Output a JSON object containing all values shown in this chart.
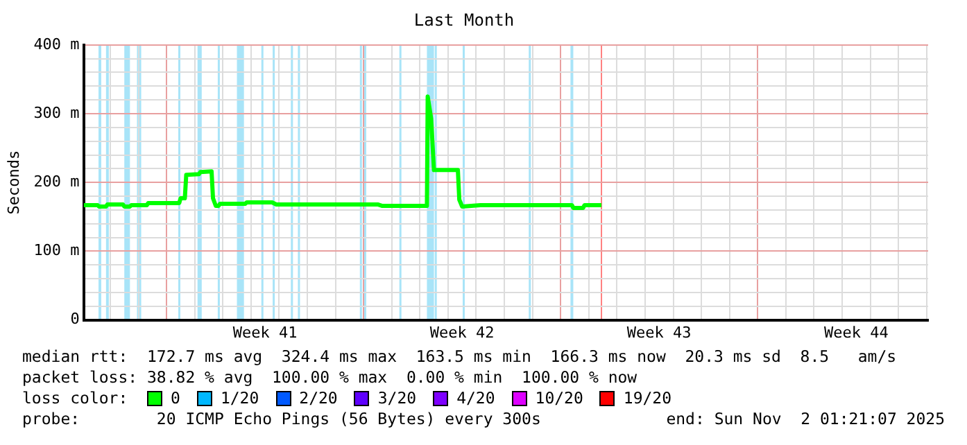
{
  "chart_data": {
    "type": "line",
    "title": "Last Month",
    "ylabel": "Seconds",
    "xlim": [
      "2025-10-03T01:21",
      "2025-11-02T01:21"
    ],
    "xticks": [
      {
        "value": "2025-10-04",
        "label": null
      },
      {
        "value": "2025-10-05",
        "label": null
      },
      {
        "value": "2025-10-06",
        "label": null
      },
      {
        "value": "2025-10-07",
        "label": null
      },
      {
        "value": "2025-10-08",
        "label": null
      },
      {
        "value": "2025-10-09",
        "label": null
      },
      {
        "value": "2025-10-09T12:00",
        "label": "Week 41"
      },
      {
        "value": "2025-10-10",
        "label": null
      },
      {
        "value": "2025-10-11",
        "label": null
      },
      {
        "value": "2025-10-12",
        "label": null
      },
      {
        "value": "2025-10-13",
        "label": null
      },
      {
        "value": "2025-10-14",
        "label": null
      },
      {
        "value": "2025-10-15",
        "label": null
      },
      {
        "value": "2025-10-16",
        "label": null
      },
      {
        "value": "2025-10-16T12:00",
        "label": "Week 42"
      },
      {
        "value": "2025-10-17",
        "label": null
      },
      {
        "value": "2025-10-18",
        "label": null
      },
      {
        "value": "2025-10-19",
        "label": null
      },
      {
        "value": "2025-10-20",
        "label": null
      },
      {
        "value": "2025-10-21",
        "label": null
      },
      {
        "value": "2025-10-22",
        "label": null
      },
      {
        "value": "2025-10-23",
        "label": null
      },
      {
        "value": "2025-10-23T12:00",
        "label": "Week 43"
      },
      {
        "value": "2025-10-24",
        "label": null
      },
      {
        "value": "2025-10-25",
        "label": null
      },
      {
        "value": "2025-10-26",
        "label": null
      },
      {
        "value": "2025-10-27",
        "label": null
      },
      {
        "value": "2025-10-28",
        "label": null
      },
      {
        "value": "2025-10-29",
        "label": null
      },
      {
        "value": "2025-10-30",
        "label": null
      },
      {
        "value": "2025-10-30T12:00",
        "label": "Week 44"
      },
      {
        "value": "2025-10-31",
        "label": null
      },
      {
        "value": "2025-11-01",
        "label": null
      },
      {
        "value": "2025-11-02",
        "label": null
      }
    ],
    "ylim": [
      0,
      400
    ],
    "yticks": [
      {
        "value": 0,
        "label": "0"
      },
      {
        "value": 20,
        "label": null
      },
      {
        "value": 40,
        "label": null
      },
      {
        "value": 60,
        "label": null
      },
      {
        "value": 80,
        "label": null
      },
      {
        "value": 100,
        "label": "100 m"
      },
      {
        "value": 120,
        "label": null
      },
      {
        "value": 140,
        "label": null
      },
      {
        "value": 160,
        "label": null
      },
      {
        "value": 180,
        "label": null
      },
      {
        "value": 200,
        "label": "200 m"
      },
      {
        "value": 220,
        "label": null
      },
      {
        "value": 240,
        "label": null
      },
      {
        "value": 260,
        "label": null
      },
      {
        "value": 280,
        "label": null
      },
      {
        "value": 300,
        "label": "300 m"
      },
      {
        "value": 320,
        "label": null
      },
      {
        "value": 340,
        "label": null
      },
      {
        "value": 360,
        "label": null
      },
      {
        "value": 380,
        "label": null
      },
      {
        "value": 400,
        "label": "400 m"
      }
    ],
    "grid": true,
    "legend": "bottom",
    "legend_title": "loss color:",
    "marker": "none",
    "line_style": "solid",
    "series": [
      {
        "name": "0",
        "color": "#00ff00",
        "x": [
          "2025-10-03T01:21",
          "2025-10-03T13:12",
          "2025-10-03T14:24",
          "2025-10-03T20:24",
          "2025-10-03T21:36",
          "2025-10-04T10:48",
          "2025-10-04T12:00",
          "2025-10-04T16:48",
          "2025-10-04T18:00",
          "2025-10-05T07:12",
          "2025-10-05T08:24",
          "2025-10-06T10:48",
          "2025-10-06T12:00",
          "2025-10-06T15:36",
          "2025-10-06T16:48",
          "2025-10-07T03:36",
          "2025-10-07T04:48",
          "2025-10-07T14:24",
          "2025-10-07T15:36",
          "2025-10-07T18:00",
          "2025-10-07T20:24",
          "2025-10-07T21:36",
          "2025-10-08T19:12",
          "2025-10-08T20:24",
          "2025-10-09T18:00",
          "2025-10-09T21:36",
          "2025-10-13T12:00",
          "2025-10-13T15:36",
          "2025-10-15T06:00",
          "2025-10-15T06:40",
          "2025-10-15T09:36",
          "2025-10-15T12:00",
          "2025-10-16T08:24",
          "2025-10-16T09:36",
          "2025-10-16T12:00",
          "2025-10-17T03:36",
          "2025-10-20T09:36",
          "2025-10-20T10:48",
          "2025-10-20T19:12",
          "2025-10-20T20:24",
          "2025-10-21T10:48"
        ],
        "values": [
          167,
          167,
          165,
          165,
          168,
          168,
          165,
          165,
          167,
          167,
          170,
          170,
          177,
          177,
          211,
          212,
          215,
          216,
          177,
          166,
          166,
          169,
          169,
          171,
          171,
          168,
          168,
          166,
          166,
          325,
          293,
          218,
          218,
          175,
          165,
          167,
          167,
          163,
          163,
          167,
          167
        ]
      },
      {
        "name": "1/20",
        "color": "#00b8ff"
      },
      {
        "name": "2/20",
        "color": "#0059ff"
      },
      {
        "name": "3/20",
        "color": "#5e00ff"
      },
      {
        "name": "4/20",
        "color": "#7e00ff"
      },
      {
        "name": "10/20",
        "color": "#dd00ff"
      },
      {
        "name": "19/20",
        "color": "#ff0000"
      }
    ],
    "bands": [
      {
        "axis": "x",
        "from": "2025-10-03T14:00",
        "to": "2025-10-03T16:20",
        "color": "#a8e4f8"
      },
      {
        "axis": "x",
        "from": "2025-10-03T20:24",
        "to": "2025-10-03T22:48",
        "color": "#a8e4f8"
      },
      {
        "axis": "x",
        "from": "2025-10-04T12:00",
        "to": "2025-10-04T16:48",
        "color": "#a8e4f8"
      },
      {
        "axis": "x",
        "from": "2025-10-04T22:48",
        "to": "2025-10-05T02:24",
        "color": "#a8e4f8"
      },
      {
        "axis": "x",
        "from": "2025-10-06T10:00",
        "to": "2025-10-06T11:30",
        "color": "#a8e4f8"
      },
      {
        "axis": "x",
        "from": "2025-10-07T02:24",
        "to": "2025-10-07T06:00",
        "color": "#a8e4f8"
      },
      {
        "axis": "x",
        "from": "2025-10-07T19:40",
        "to": "2025-10-07T21:10",
        "color": "#a8e4f8"
      },
      {
        "axis": "x",
        "from": "2025-10-08T12:00",
        "to": "2025-10-08T18:00",
        "color": "#a8e4f8"
      },
      {
        "axis": "x",
        "from": "2025-10-09T08:50",
        "to": "2025-10-09T10:20",
        "color": "#a8e4f8"
      },
      {
        "axis": "x",
        "from": "2025-10-09T18:30",
        "to": "2025-10-09T19:50",
        "color": "#a8e4f8"
      },
      {
        "axis": "x",
        "from": "2025-10-10T10:00",
        "to": "2025-10-10T11:30",
        "color": "#a8e4f8"
      },
      {
        "axis": "x",
        "from": "2025-10-10T16:00",
        "to": "2025-10-10T17:30",
        "color": "#a8e4f8"
      },
      {
        "axis": "x",
        "from": "2025-10-12T20:50",
        "to": "2025-10-12T22:20",
        "color": "#a8e4f8"
      },
      {
        "axis": "x",
        "from": "2025-10-13T00:30",
        "to": "2025-10-13T01:50",
        "color": "#a8e4f8"
      },
      {
        "axis": "x",
        "from": "2025-10-14T06:30",
        "to": "2025-10-14T07:50",
        "color": "#a8e4f8"
      },
      {
        "axis": "x",
        "from": "2025-10-15T06:00",
        "to": "2025-10-15T12:00",
        "color": "#a8e4f8"
      },
      {
        "axis": "x",
        "from": "2025-10-15T12:40",
        "to": "2025-10-15T13:50",
        "color": "#a8e4f8"
      },
      {
        "axis": "x",
        "from": "2025-10-16T12:30",
        "to": "2025-10-16T13:50",
        "color": "#a8e4f8"
      },
      {
        "axis": "x",
        "from": "2025-10-18T20:50",
        "to": "2025-10-18T22:20",
        "color": "#a8e4f8"
      },
      {
        "axis": "x",
        "from": "2025-10-20T08:24",
        "to": "2025-10-20T10:48",
        "color": "#a8e4f8"
      }
    ],
    "ref_lines": [
      {
        "axis": "x",
        "value": "2025-10-21T10:48",
        "color": "#ff8080"
      }
    ],
    "annotations": [
      "median rtt:  172.7 ms avg  324.4 ms max  163.5 ms min  166.3 ms now  20.3 ms sd  8.5   am/s",
      "packet loss: 38.82 % avg  100.00 % max  0.00 % min  100.00 % now",
      "probe:        20 ICMP Echo Pings (56 Bytes) every 300s",
      "end: Sun Nov  2 01:21:07 2025"
    ]
  }
}
